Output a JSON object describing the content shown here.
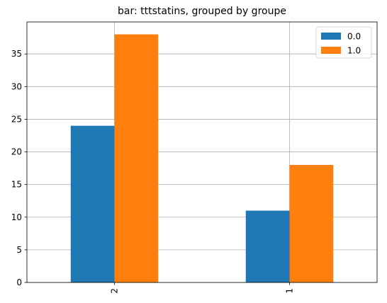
{
  "chart_data": {
    "type": "bar",
    "title": "bar: tttstatins, grouped by groupe",
    "xlabel": "",
    "ylabel": "",
    "categories": [
      "2",
      "1"
    ],
    "series": [
      {
        "name": "0.0",
        "values": [
          24,
          11
        ],
        "color": "#1f77b4"
      },
      {
        "name": "1.0",
        "values": [
          38,
          18
        ],
        "color": "#ff7f0e"
      }
    ],
    "ylim": [
      0,
      39.9
    ],
    "yticks": [
      0,
      5,
      10,
      15,
      20,
      25,
      30,
      35
    ],
    "grid": true,
    "legend_position": "top-right",
    "x_tick_rotation": 90
  }
}
